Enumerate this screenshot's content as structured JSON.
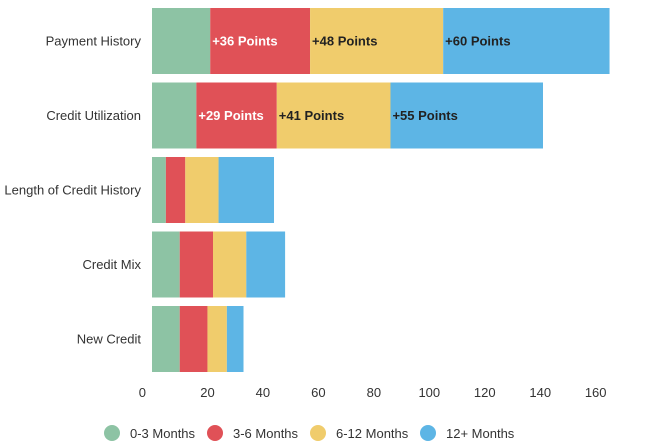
{
  "chart_data": {
    "type": "bar",
    "orientation": "horizontal",
    "stacked": true,
    "categories": [
      "Payment History",
      "Credit Utilization",
      "Length of Credit History",
      "Credit Mix",
      "New Credit"
    ],
    "series": [
      {
        "name": "0-3 Months",
        "color": "#8dc3a4",
        "values": [
          21,
          16,
          5,
          10,
          10
        ],
        "labels": [
          "",
          "",
          "",
          "",
          ""
        ]
      },
      {
        "name": "3-6 Months",
        "color": "#e05157",
        "values": [
          36,
          29,
          7,
          12,
          10
        ],
        "labels": [
          "+36 Points",
          "+29 Points",
          "",
          "",
          ""
        ]
      },
      {
        "name": "6-12 Months",
        "color": "#f0cc6c",
        "values": [
          48,
          41,
          12,
          12,
          7
        ],
        "labels": [
          "+48 Points",
          "+41 Points",
          "",
          "",
          ""
        ]
      },
      {
        "name": "12+ Months",
        "color": "#5db5e5",
        "values": [
          60,
          55,
          20,
          14,
          6
        ],
        "labels": [
          "+60 Points",
          "+55 Points",
          "",
          "",
          ""
        ]
      }
    ],
    "label_colors": [
      "#222222",
      "#ffffff",
      "#222222",
      "#222222"
    ],
    "xlim": [
      0,
      170
    ],
    "xticks": [
      0,
      20,
      40,
      60,
      80,
      100,
      120,
      140,
      160
    ],
    "legend_position": "bottom",
    "grid": false
  }
}
